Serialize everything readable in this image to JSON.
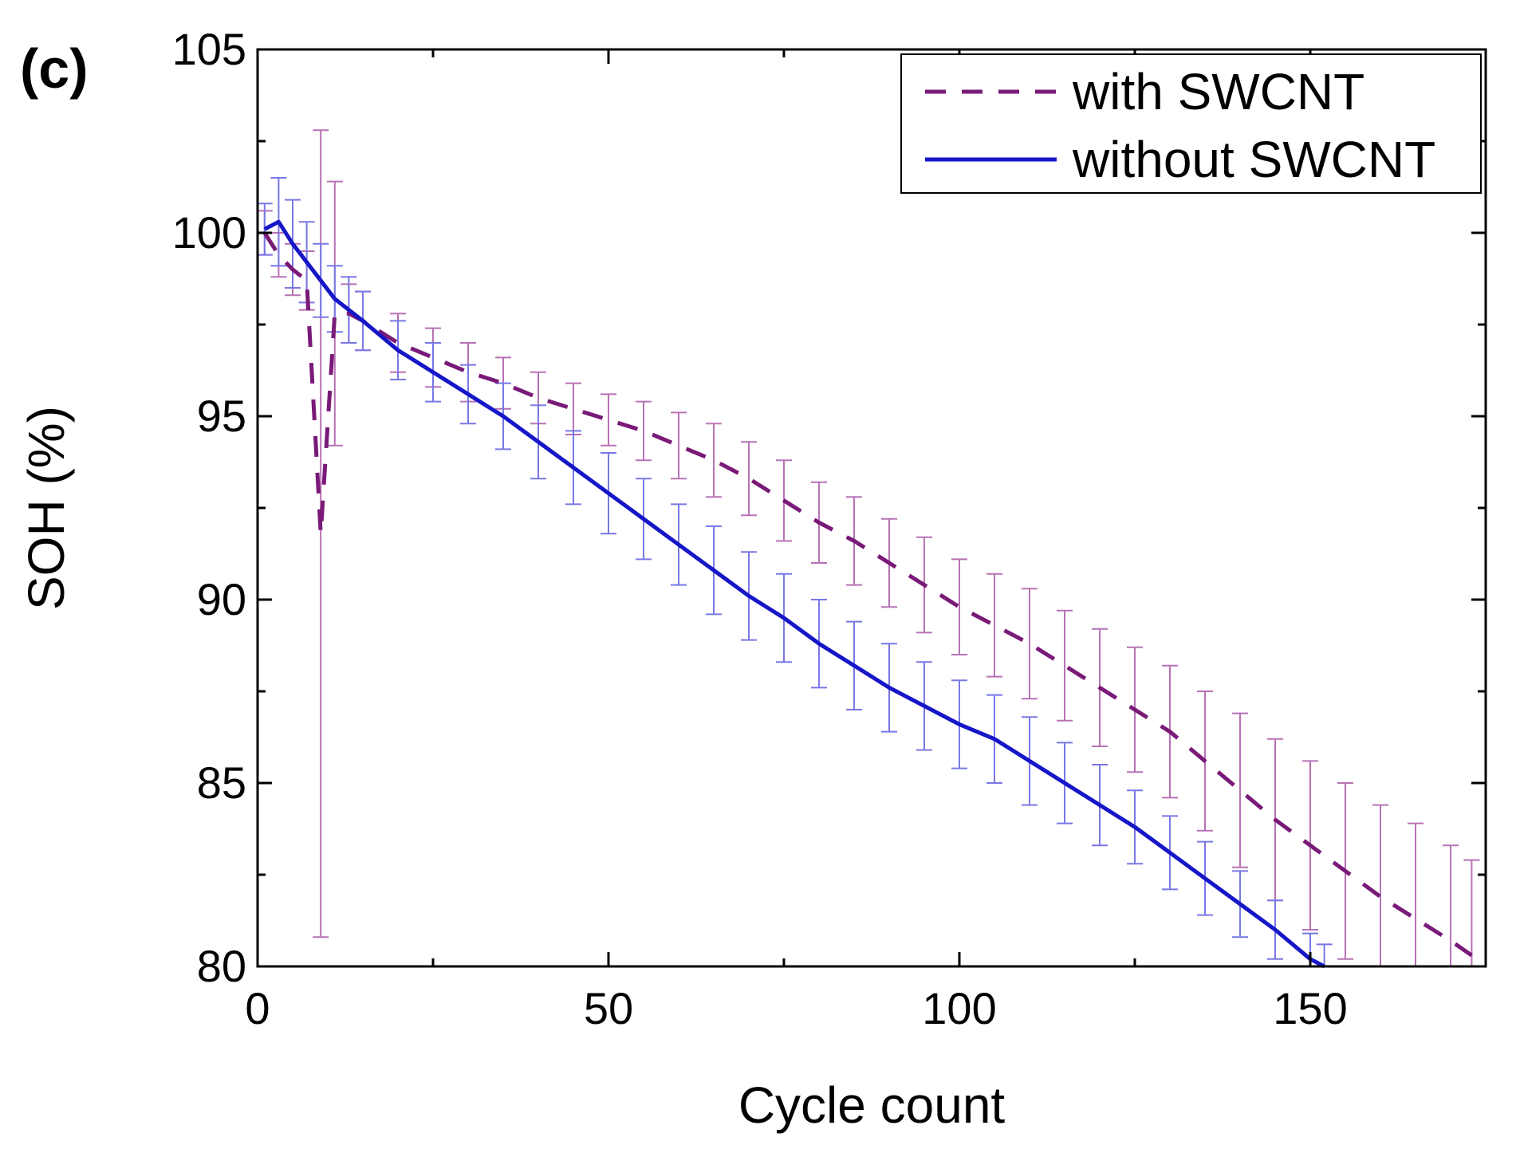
{
  "panel_label": "(c)",
  "colors": {
    "with_line": "#7a1a78",
    "with_err": "#b772b5",
    "without_line": "#1616c8",
    "without_err": "#7878e6"
  },
  "chart_data": {
    "type": "line",
    "title": "",
    "xlabel": "Cycle count",
    "ylabel": "SOH (%)",
    "xlim": [
      0,
      175
    ],
    "ylim": [
      80,
      105
    ],
    "xticks": [
      0,
      50,
      100,
      150
    ],
    "yticks": [
      80,
      85,
      90,
      95,
      100,
      105
    ],
    "xtick_labels": [
      "0",
      "50",
      "100",
      "150"
    ],
    "ytick_labels": [
      "80",
      "85",
      "90",
      "95",
      "100",
      "105"
    ],
    "grid": false,
    "legend_position": "top-right",
    "series": [
      {
        "name": "with SWCNT",
        "style": "dashed",
        "x": [
          1,
          3,
          5,
          7,
          9,
          11,
          13,
          15,
          20,
          25,
          30,
          35,
          40,
          45,
          50,
          55,
          60,
          65,
          70,
          75,
          80,
          85,
          90,
          95,
          100,
          105,
          110,
          115,
          120,
          125,
          130,
          135,
          140,
          145,
          150,
          155,
          160,
          165,
          170,
          173
        ],
        "y": [
          100.0,
          99.4,
          99.0,
          98.7,
          91.8,
          97.8,
          97.8,
          97.6,
          97.0,
          96.6,
          96.2,
          95.9,
          95.5,
          95.2,
          94.9,
          94.6,
          94.2,
          93.8,
          93.3,
          92.7,
          92.1,
          91.6,
          91.0,
          90.4,
          89.8,
          89.3,
          88.8,
          88.2,
          87.6,
          87.0,
          86.4,
          85.6,
          84.8,
          84.0,
          83.3,
          82.6,
          81.9,
          81.3,
          80.7,
          80.3
        ],
        "error": [
          0.6,
          0.6,
          0.7,
          0.8,
          11.0,
          3.6,
          0.8,
          0.8,
          0.8,
          0.8,
          0.8,
          0.7,
          0.7,
          0.7,
          0.7,
          0.8,
          0.9,
          1.0,
          1.0,
          1.1,
          1.1,
          1.2,
          1.2,
          1.3,
          1.3,
          1.4,
          1.5,
          1.5,
          1.6,
          1.7,
          1.8,
          1.9,
          2.1,
          2.2,
          2.3,
          2.4,
          2.5,
          2.6,
          2.6,
          2.6
        ]
      },
      {
        "name": "without SWCNT",
        "style": "solid",
        "x": [
          1,
          3,
          5,
          7,
          9,
          11,
          13,
          15,
          20,
          25,
          30,
          35,
          40,
          45,
          50,
          55,
          60,
          65,
          70,
          75,
          80,
          85,
          90,
          95,
          100,
          105,
          110,
          115,
          120,
          125,
          130,
          135,
          140,
          145,
          150,
          152
        ],
        "y": [
          100.1,
          100.3,
          99.7,
          99.2,
          98.7,
          98.2,
          97.9,
          97.6,
          96.8,
          96.2,
          95.6,
          95.0,
          94.3,
          93.6,
          92.9,
          92.2,
          91.5,
          90.8,
          90.1,
          89.5,
          88.8,
          88.2,
          87.6,
          87.1,
          86.6,
          86.2,
          85.6,
          85.0,
          84.4,
          83.8,
          83.1,
          82.4,
          81.7,
          81.0,
          80.2,
          80.0
        ],
        "error": [
          0.7,
          1.2,
          1.2,
          1.1,
          1.0,
          0.9,
          0.9,
          0.8,
          0.8,
          0.8,
          0.8,
          0.9,
          1.0,
          1.0,
          1.1,
          1.1,
          1.1,
          1.2,
          1.2,
          1.2,
          1.2,
          1.2,
          1.2,
          1.2,
          1.2,
          1.2,
          1.2,
          1.1,
          1.1,
          1.0,
          1.0,
          1.0,
          0.9,
          0.8,
          0.7,
          0.6
        ]
      }
    ]
  }
}
